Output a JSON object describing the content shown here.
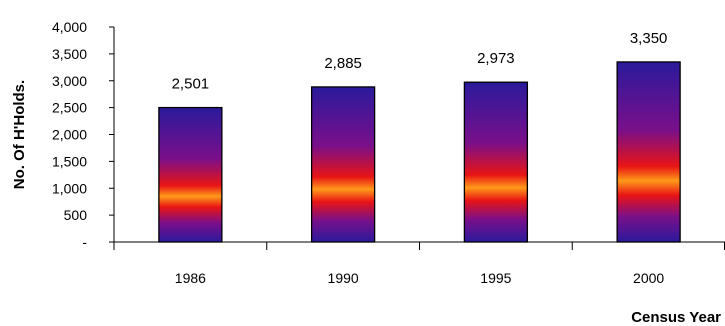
{
  "chart_data": {
    "type": "bar",
    "categories": [
      "1986",
      "1990",
      "1995",
      "2000"
    ],
    "values": [
      2501,
      2885,
      2973,
      3350
    ],
    "value_labels": [
      "2,501",
      "2,885",
      "2,973",
      "3,350"
    ],
    "title": "",
    "xlabel": "Census Year",
    "ylabel": "No. Of H'Holds.",
    "ylim": [
      0,
      4000
    ],
    "yticks": [
      0,
      500,
      1000,
      1500,
      2000,
      2500,
      3000,
      3500,
      4000
    ],
    "ytick_labels": [
      "-",
      "500",
      "1,000",
      "1,500",
      "2,000",
      "2,500",
      "3,000",
      "3,500",
      "4,000"
    ],
    "grid": false,
    "legend": "none",
    "bar_gradient": {
      "edge": "#2a1a9c",
      "mid": "#7a0f8a",
      "hot": "#e81414",
      "center": "#ff9a1a",
      "outline": "#000000"
    }
  }
}
